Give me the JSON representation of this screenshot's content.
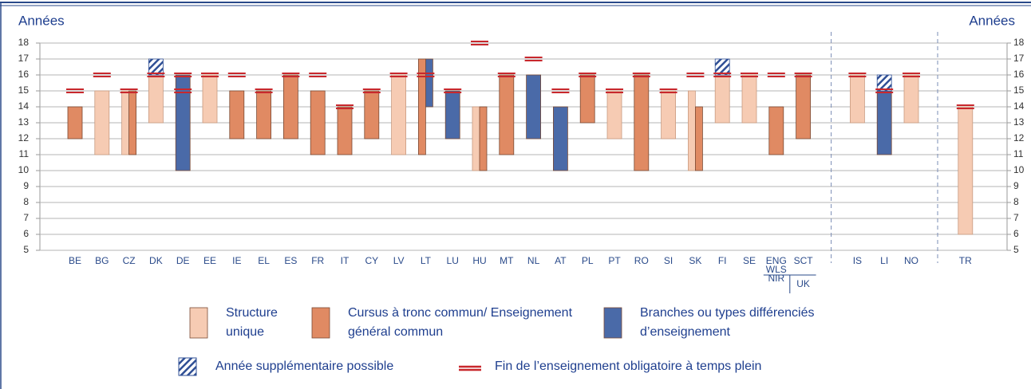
{
  "chart_data": {
    "type": "floating_bar",
    "ylabel": "Années",
    "y2label": "Années",
    "categories": [
      "BE",
      "BG",
      "CZ",
      "DK",
      "DE",
      "EE",
      "IE",
      "EL",
      "ES",
      "FR",
      "IT",
      "CY",
      "LV",
      "LT",
      "LU",
      "HU",
      "MT",
      "NL",
      "AT",
      "PL",
      "PT",
      "RO",
      "SI",
      "SK",
      "FI",
      "SE",
      "ENG WLS NIR",
      "SCT",
      "IS",
      "LI",
      "NO",
      "TR"
    ],
    "annotation": "UK",
    "ylim": [
      5,
      18
    ],
    "yticks": [
      5,
      6,
      7,
      8,
      9,
      10,
      11,
      12,
      13,
      14,
      15,
      16,
      17,
      18
    ],
    "y2lim": [
      5,
      18
    ],
    "y2ticks": [
      5,
      6,
      7,
      8,
      9,
      10,
      11,
      12,
      13,
      14,
      15,
      16,
      17,
      18
    ],
    "grid": true,
    "series": [
      {
        "name": "Structure unique",
        "color": "#f6cbb3",
        "values": [
          null,
          [
            11,
            15
          ],
          [
            11,
            15
          ],
          [
            13,
            16
          ],
          null,
          [
            13,
            16
          ],
          null,
          null,
          null,
          null,
          null,
          null,
          [
            11,
            16
          ],
          null,
          null,
          [
            10,
            14
          ],
          null,
          null,
          null,
          null,
          [
            12,
            15
          ],
          null,
          [
            12,
            15
          ],
          [
            10,
            15
          ],
          [
            13,
            16
          ],
          [
            13,
            16
          ],
          null,
          null,
          [
            13,
            16
          ],
          null,
          [
            13,
            16
          ],
          [
            6,
            14
          ]
        ]
      },
      {
        "name": "Cursus à tronc commun/ Enseignement général commun",
        "color": "#e08a63",
        "values": [
          [
            12,
            14
          ],
          null,
          [
            11,
            15
          ],
          null,
          null,
          null,
          [
            12,
            15
          ],
          [
            12,
            15
          ],
          [
            12,
            16
          ],
          [
            11,
            15
          ],
          [
            11,
            14
          ],
          [
            12,
            15
          ],
          null,
          [
            11,
            17
          ],
          null,
          [
            10,
            14
          ],
          [
            11,
            16
          ],
          null,
          null,
          [
            13,
            16
          ],
          null,
          [
            10,
            16
          ],
          null,
          [
            10,
            14
          ],
          null,
          null,
          [
            11,
            14
          ],
          [
            12,
            16
          ],
          null,
          null,
          null,
          null
        ]
      },
      {
        "name": "Branches ou types différenciés d’enseignement",
        "color": "#4a6aa8",
        "values": [
          null,
          null,
          null,
          null,
          [
            10,
            16
          ],
          null,
          null,
          null,
          null,
          null,
          null,
          null,
          null,
          [
            14,
            17
          ],
          [
            12,
            15
          ],
          null,
          null,
          [
            12,
            16
          ],
          [
            10,
            14
          ],
          null,
          null,
          null,
          null,
          null,
          null,
          null,
          null,
          null,
          null,
          [
            11,
            15
          ],
          null,
          null
        ]
      },
      {
        "name": "Année supplémentaire possible",
        "color": "#2f4f95",
        "values": [
          null,
          null,
          null,
          [
            16,
            17
          ],
          null,
          null,
          null,
          null,
          null,
          null,
          null,
          null,
          null,
          null,
          null,
          null,
          null,
          null,
          null,
          null,
          null,
          null,
          null,
          null,
          [
            16,
            17
          ],
          null,
          null,
          null,
          null,
          [
            15,
            16
          ],
          null,
          null
        ]
      },
      {
        "name": "Fin de l’enseignement obligatoire à temps plein",
        "color": "#c8282d",
        "values": [
          [
            15
          ],
          [
            16
          ],
          [
            15
          ],
          [
            16
          ],
          [
            15,
            16
          ],
          [
            16
          ],
          [
            16
          ],
          [
            15
          ],
          [
            16
          ],
          [
            16
          ],
          [
            14
          ],
          [
            15
          ],
          [
            16
          ],
          [
            16
          ],
          [
            15
          ],
          [
            18
          ],
          [
            16
          ],
          [
            17
          ],
          [
            15
          ],
          [
            16
          ],
          [
            15
          ],
          [
            16
          ],
          [
            15
          ],
          [
            16
          ],
          [
            16
          ],
          [
            16
          ],
          [
            16
          ],
          [
            16
          ],
          [
            16
          ],
          [
            15
          ],
          [
            16
          ],
          [
            14
          ]
        ]
      }
    ]
  }
}
